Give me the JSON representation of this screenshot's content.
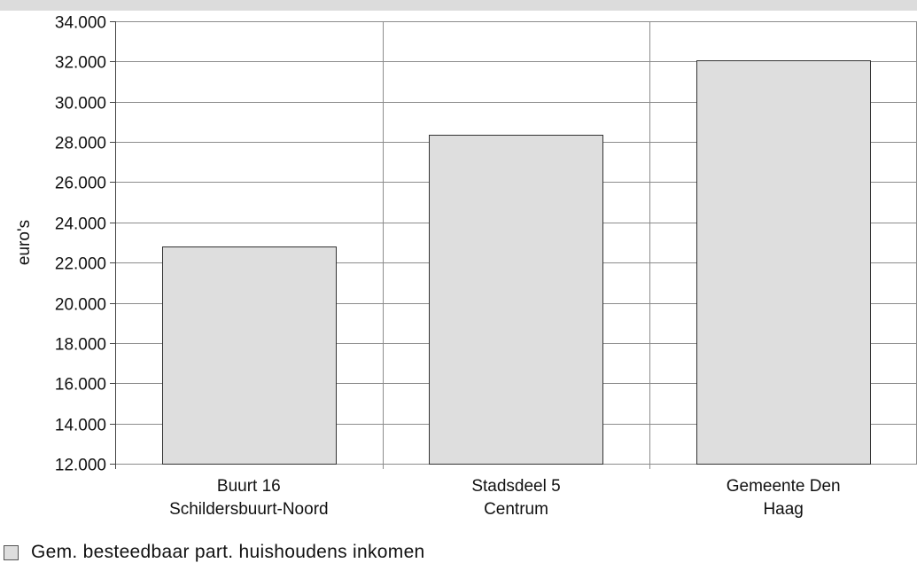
{
  "chart_data": {
    "type": "bar",
    "categories": [
      [
        "Buurt 16",
        "Schildersbuurt-Noord"
      ],
      [
        "Stadsdeel 5",
        "Centrum"
      ],
      [
        "Gemeente Den",
        "Haag"
      ]
    ],
    "series": [
      {
        "name": "Gem. besteedbaar part. huishoudens inkomen",
        "values": [
          22800,
          28350,
          32050
        ]
      }
    ],
    "ylabel": "euro's",
    "ylim": [
      12000,
      34000
    ],
    "yticks": [
      12000,
      14000,
      16000,
      18000,
      20000,
      22000,
      24000,
      26000,
      28000,
      30000,
      32000,
      34000
    ],
    "ytick_labels": [
      "12.000",
      "14.000",
      "16.000",
      "18.000",
      "20.000",
      "22.000",
      "24.000",
      "26.000",
      "28.000",
      "30.000",
      "32.000",
      "34.000"
    ],
    "grid": "both",
    "legend_position": "bottom-left",
    "colors": {
      "bar_fill": "#dedede",
      "bar_stroke": "#333333",
      "grid": "#8c8c8c",
      "top_band": "#dcdcdc"
    }
  },
  "legend": {
    "label": "Gem. besteedbaar part. huishoudens inkomen"
  }
}
